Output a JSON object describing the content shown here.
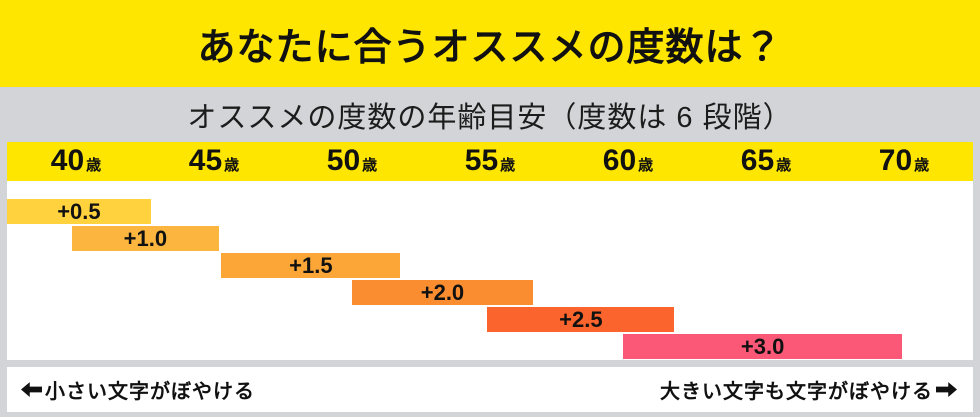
{
  "header": {
    "title": "あなたに合うオススメの度数は？"
  },
  "subtitle": {
    "text": "オススメの度数の年齢目安（度数は 6 段階）"
  },
  "chart_data": {
    "type": "bar",
    "orientation": "horizontal-stepped",
    "title": "オススメの度数の年齢目安（度数は 6 段階）",
    "xlabel": "年齢",
    "x_axis": {
      "unit": "歳",
      "ticks": [
        40,
        45,
        50,
        55,
        60,
        65,
        70
      ],
      "range": [
        37.5,
        73.1
      ],
      "tick_band_color": "#FFE600"
    },
    "bars": [
      {
        "label": "+0.5",
        "age_start": 37.5,
        "age_end": 42.8,
        "color": "#FFD23E"
      },
      {
        "label": "+1.0",
        "age_start": 39.9,
        "age_end": 45.3,
        "color": "#FCB53E"
      },
      {
        "label": "+1.5",
        "age_start": 45.4,
        "age_end": 52.0,
        "color": "#FBA637"
      },
      {
        "label": "+2.0",
        "age_start": 50.2,
        "age_end": 56.9,
        "color": "#FA8D30"
      },
      {
        "label": "+2.5",
        "age_start": 55.2,
        "age_end": 62.1,
        "color": "#FB642C"
      },
      {
        "label": "+3.0",
        "age_start": 60.2,
        "age_end": 70.5,
        "color": "#FB5877"
      }
    ],
    "legend": "none",
    "grid": false
  },
  "footer": {
    "left_arrow_icon": "left-arrow",
    "left_label": "小さい文字がぼやける",
    "right_label": "大きい文字も文字がぼやける",
    "right_arrow_icon": "right-arrow"
  },
  "colors": {
    "band_yellow": "#FFE600",
    "background_gray": "#D2D4D8",
    "chart_background": "#FFFFFF",
    "text": "#111111"
  }
}
